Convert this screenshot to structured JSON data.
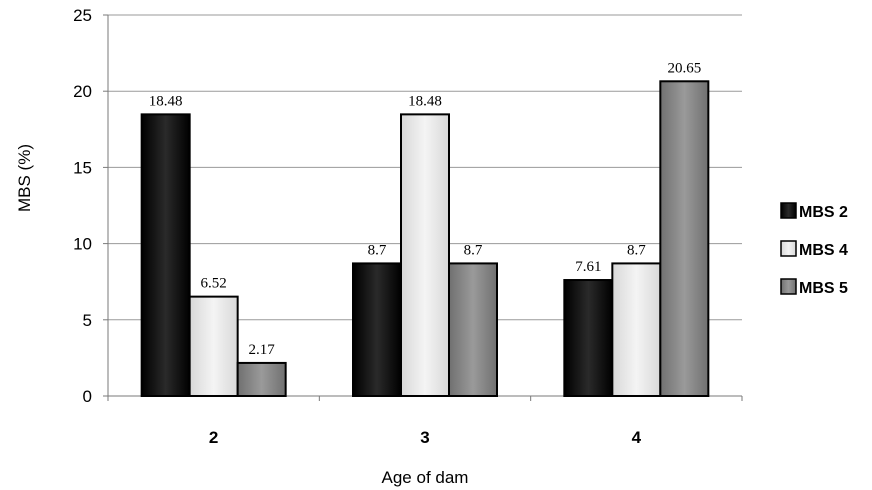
{
  "chart_data": {
    "type": "bar",
    "xlabel": "Age of dam",
    "ylabel": "MBS (%)",
    "ylim": [
      0,
      25
    ],
    "yticks": [
      0,
      5,
      10,
      15,
      20,
      25
    ],
    "grid": true,
    "legend_position": "right",
    "categories": [
      "2",
      "3",
      "4"
    ],
    "series": [
      {
        "name": "MBS 2",
        "values": [
          18.48,
          8.7,
          7.61
        ],
        "labels": [
          "18.48",
          "8.7",
          "7.61"
        ],
        "color": "#111111"
      },
      {
        "name": "MBS 4",
        "values": [
          6.52,
          18.48,
          8.7
        ],
        "labels": [
          "6.52",
          "18.48",
          "8.7"
        ],
        "color": "#e8e8e8"
      },
      {
        "name": "MBS 5",
        "values": [
          2.17,
          8.7,
          20.65
        ],
        "labels": [
          "2.17",
          "8.7",
          "20.65"
        ],
        "color": "#8a8a8a"
      }
    ]
  }
}
